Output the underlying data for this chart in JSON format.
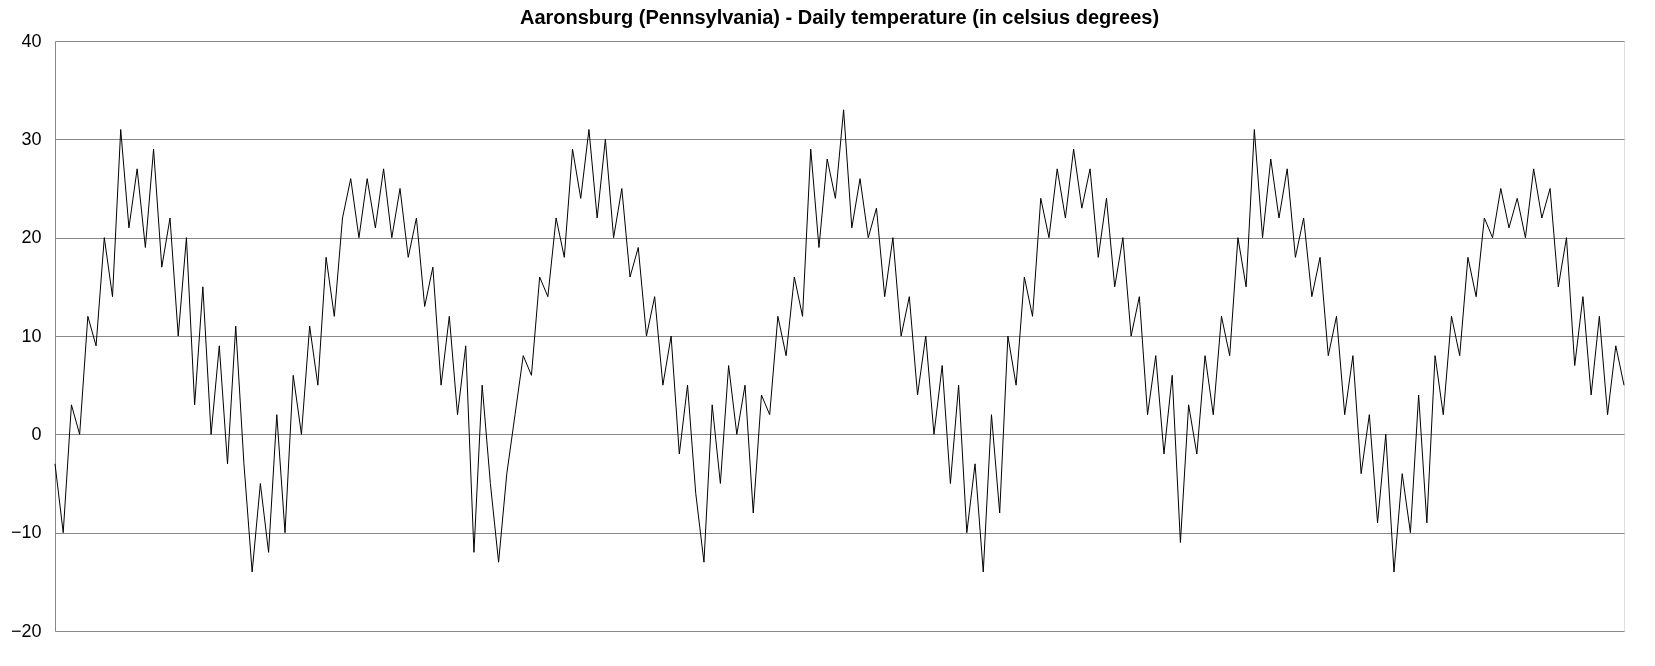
{
  "chart_data": {
    "type": "line",
    "title": "Aaronsburg (Pennsylvania) - Daily temperature (in celsius degrees)",
    "categories": [
      null,
      null,
      null,
      null,
      null,
      null,
      null,
      null,
      null,
      null,
      null,
      null,
      null,
      null,
      null,
      null,
      null,
      null,
      null,
      null,
      null,
      null,
      null,
      null,
      null,
      null,
      null,
      null,
      null,
      null,
      null,
      null,
      null,
      null,
      null,
      null,
      null,
      null,
      null,
      null,
      null,
      null,
      null,
      null,
      null,
      null,
      null,
      null,
      null,
      null,
      null,
      null,
      null,
      null,
      null,
      null,
      null,
      null,
      null,
      null,
      null,
      null,
      null,
      null,
      null,
      null,
      null,
      null,
      null,
      null,
      null,
      null,
      null,
      null,
      null,
      null,
      null,
      null,
      null,
      null,
      null,
      null,
      null,
      null,
      null,
      null,
      null,
      null,
      null,
      null,
      null,
      null,
      null,
      null,
      null,
      null,
      null,
      null,
      null,
      null,
      null,
      null,
      null,
      null,
      null,
      null,
      null,
      null,
      null,
      null,
      null,
      null,
      null,
      null,
      null,
      null,
      null,
      null,
      null,
      null,
      null,
      null,
      null,
      null,
      null,
      null,
      null,
      null,
      null,
      null,
      null,
      null,
      null,
      null,
      null,
      null,
      null,
      null,
      null,
      null,
      null,
      null,
      null,
      null,
      null,
      null,
      null,
      null,
      null,
      null,
      null,
      null,
      null,
      null,
      null,
      null,
      null,
      null,
      null,
      null,
      null,
      null,
      null,
      null,
      null,
      null,
      null,
      null,
      null,
      null,
      null,
      null,
      null,
      null,
      null,
      null,
      null,
      null,
      null,
      null,
      null,
      null,
      null,
      null,
      null,
      null,
      null,
      null,
      null,
      null,
      null,
      null
    ],
    "series": [
      {
        "color": "#000000",
        "values": [
          -3,
          -10,
          3,
          0,
          12,
          9,
          20,
          14,
          31,
          21,
          27,
          19,
          29,
          17,
          22,
          10,
          20,
          3,
          15,
          0,
          9,
          -3,
          11,
          -3,
          -14,
          -5,
          -12,
          2,
          -10,
          6,
          0,
          11,
          5,
          18,
          12,
          22,
          26,
          20,
          26,
          21,
          27,
          20,
          25,
          18,
          22,
          13,
          17,
          5,
          12,
          2,
          9,
          -12,
          5,
          -5,
          -13,
          -4,
          2,
          8,
          6,
          16,
          14,
          22,
          18,
          29,
          24,
          31,
          22,
          30,
          20,
          25,
          16,
          19,
          10,
          14,
          5,
          10,
          -2,
          5,
          -6,
          -13,
          3,
          -5,
          7,
          0,
          5,
          -8,
          4,
          2,
          12,
          8,
          16,
          12,
          29,
          19,
          28,
          24,
          33,
          21,
          26,
          20,
          23,
          14,
          20,
          10,
          14,
          4,
          10,
          0,
          7,
          -5,
          5,
          -10,
          -3,
          -14,
          2,
          -8,
          10,
          5,
          16,
          12,
          24,
          20,
          27,
          22,
          29,
          23,
          27,
          18,
          24,
          15,
          20,
          10,
          14,
          2,
          8,
          -2,
          6,
          -11,
          3,
          -2,
          8,
          2,
          12,
          8,
          20,
          15,
          31,
          20,
          28,
          22,
          27,
          18,
          22,
          14,
          18,
          8,
          12,
          2,
          8,
          -4,
          2,
          -9,
          0,
          -14,
          -4,
          -10,
          4,
          -9,
          8,
          2,
          12,
          8,
          18,
          14,
          22,
          20,
          25,
          21,
          24,
          20,
          27,
          22,
          25,
          15,
          20,
          7,
          14,
          4,
          12,
          2,
          9,
          5
        ]
      }
    ],
    "ylim": [
      -20,
      40
    ],
    "yticks": [
      -20,
      -10,
      0,
      10,
      20,
      30,
      40
    ],
    "grid": "y",
    "tick_labels": "y",
    "marker": "none",
    "line_style": "solid"
  }
}
